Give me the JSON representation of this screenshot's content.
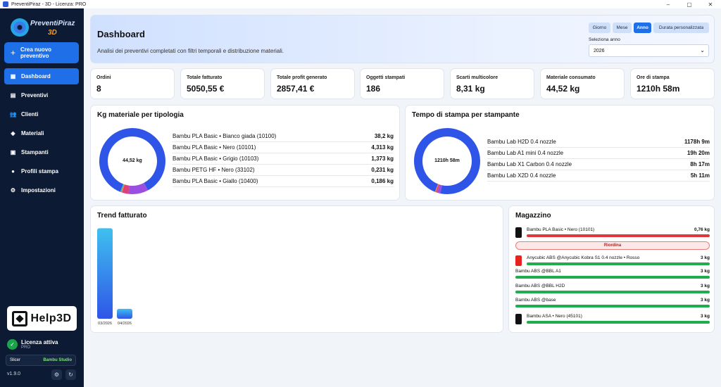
{
  "window": {
    "title": "PreventiPiraz - 3D - Licenza: PRO"
  },
  "logo": {
    "line1": "PreventiPiraz",
    "line2": "3D"
  },
  "sidebar": {
    "new_button": "Crea nuovo preventivo",
    "items": [
      {
        "label": "Dashboard",
        "icon": "dashboard-icon",
        "active": true
      },
      {
        "label": "Preventivi",
        "icon": "document-icon"
      },
      {
        "label": "Clienti",
        "icon": "users-icon"
      },
      {
        "label": "Materiali",
        "icon": "cube-icon"
      },
      {
        "label": "Stampanti",
        "icon": "printer-icon"
      },
      {
        "label": "Profili stampa",
        "icon": "user-icon"
      },
      {
        "label": "Impostazioni",
        "icon": "gear-icon"
      }
    ],
    "help3d": "Help3D",
    "license": {
      "title": "Licenza attiva",
      "tier": "PRO"
    },
    "slicer": {
      "label": "Slicer",
      "value": "Bambu Studio"
    },
    "version": "v1.9.0"
  },
  "header": {
    "title": "Dashboard",
    "subtitle": "Analisi dei preventivi completati con filtri temporali e distribuzione materiali.",
    "ranges": [
      "Giorno",
      "Mese",
      "Anno",
      "Durata personalizzata"
    ],
    "active_range": "Anno",
    "year_label": "Seleziona anno",
    "year_value": "2026"
  },
  "stats": [
    {
      "label": "Ordini",
      "value": "8"
    },
    {
      "label": "Totale fatturato",
      "value": "5050,55 €"
    },
    {
      "label": "Totale profit generato",
      "value": "2857,41 €"
    },
    {
      "label": "Oggetti stampati",
      "value": "186"
    },
    {
      "label": "Scarti multicolore",
      "value": "8,31 kg"
    },
    {
      "label": "Materiale consumato",
      "value": "44,52 kg"
    },
    {
      "label": "Ore di stampa",
      "value": "1210h 58m"
    }
  ],
  "materials": {
    "title": "Kg materiale per tipologia",
    "center": "44,52 kg",
    "rows": [
      {
        "name": "Bambu PLA Basic • Bianco giada (10100)",
        "value": "38,2 kg",
        "kg": 38.2,
        "color": "#2f55e8"
      },
      {
        "name": "Bambu PLA Basic • Nero (10101)",
        "value": "4,313 kg",
        "kg": 4.313,
        "color": "#9b4fe0"
      },
      {
        "name": "Bambu PLA Basic • Grigio (10103)",
        "value": "1,373 kg",
        "kg": 1.373,
        "color": "#e0407a"
      },
      {
        "name": "Bambu PETG HF • Nero (33102)",
        "value": "0,231 kg",
        "kg": 0.231,
        "color": "#f07a3a"
      },
      {
        "name": "Bambu PLA Basic • Giallo (10400)",
        "value": "0,186 kg",
        "kg": 0.186,
        "color": "#2fb8a8"
      }
    ]
  },
  "printers": {
    "title": "Tempo di stampa per stampante",
    "center": "1210h 58m",
    "rows": [
      {
        "name": "Bambu Lab H2D 0.4 nozzle",
        "value": "1178h 9m",
        "hours": 1178.15,
        "color": "#2f55e8"
      },
      {
        "name": "Bambu Lab A1 mini 0.4 nozzle",
        "value": "19h 20m",
        "hours": 19.33,
        "color": "#9b4fe0"
      },
      {
        "name": "Bambu Lab X1 Carbon 0.4 nozzle",
        "value": "8h 17m",
        "hours": 8.28,
        "color": "#e0407a"
      },
      {
        "name": "Bambu Lab X2D 0.4 nozzle",
        "value": "5h 11m",
        "hours": 5.18,
        "color": "#f07a3a"
      }
    ]
  },
  "chart_data": {
    "type": "bar",
    "title": "Trend fatturato",
    "categories": [
      "03/2026",
      "04/2026"
    ],
    "values": [
      4550,
      500
    ],
    "ylim": [
      0,
      4600
    ],
    "grid": false,
    "legend": "none"
  },
  "warehouse": {
    "title": "Magazzino",
    "reorder_label": "Riordina",
    "items": [
      {
        "name": "Bambu PLA Basic • Nero (10101)",
        "qty": "0,76 kg",
        "level": 1.0,
        "bar": "#e0363e",
        "swatch": "#111111"
      },
      {
        "name": "Anycubic ABS @Anycubic Kobra S1 0.4 nozzle • Rosso",
        "qty": "3 kg",
        "level": 1.0,
        "bar": "#1fad4f",
        "swatch": "#e8231f"
      },
      {
        "name": "Bambu ABS @BBL A1",
        "qty": "3 kg",
        "level": 1.0,
        "bar": "#1fad4f"
      },
      {
        "name": "Bambu ABS @BBL H2D",
        "qty": "3 kg",
        "level": 1.0,
        "bar": "#1fad4f"
      },
      {
        "name": "Bambu ABS @base",
        "qty": "3 kg",
        "level": 1.0,
        "bar": "#1fad4f"
      },
      {
        "name": "Bambu ASA • Nero (45101)",
        "qty": "3 kg",
        "level": 1.0,
        "bar": "#1fad4f",
        "swatch": "#111111"
      }
    ]
  }
}
